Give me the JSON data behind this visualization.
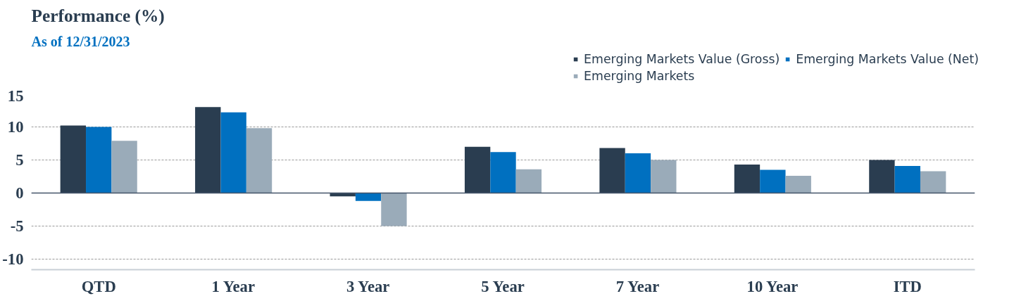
{
  "chart_data": {
    "type": "bar",
    "title": "Performance (%)",
    "subtitle": "As of 12/31/2023",
    "categories": [
      "QTD",
      "1 Year",
      "3 Year",
      "5 Year",
      "7 Year",
      "10 Year",
      "ITD"
    ],
    "series": [
      {
        "name": "Emerging Markets Value (Gross)",
        "color": "#2a3d50",
        "values": [
          10.2,
          13.0,
          -0.5,
          7.0,
          6.8,
          4.3,
          5.0
        ]
      },
      {
        "name": "Emerging Markets Value (Net)",
        "color": "#0070c0",
        "values": [
          10.0,
          12.2,
          -1.2,
          6.2,
          6.0,
          3.5,
          4.1
        ]
      },
      {
        "name": "Emerging Markets",
        "color": "#9aabb9",
        "values": [
          7.9,
          9.8,
          -5.0,
          3.6,
          5.0,
          2.6,
          3.3
        ]
      }
    ],
    "ylim": [
      -11.6,
      15
    ],
    "yticks": [
      -10,
      -5,
      0,
      5,
      10,
      15
    ],
    "grid": "y",
    "legend": "top right",
    "ref_lines": [
      {
        "axis": "y",
        "value": 0,
        "color": "#44546a"
      }
    ]
  }
}
